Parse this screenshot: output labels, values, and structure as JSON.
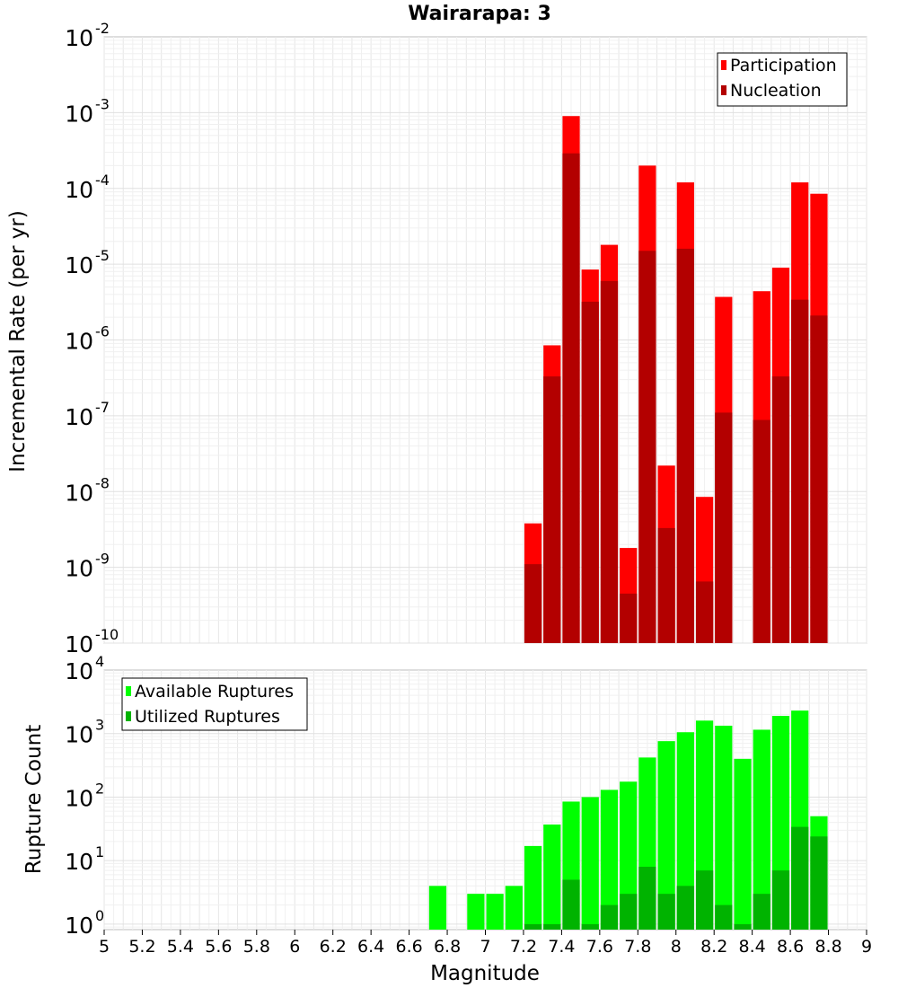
{
  "chart_data": [
    {
      "type": "bar",
      "title": "Wairarapa: 3",
      "xlabel": "",
      "ylabel": "Incremental Rate (per yr)",
      "yscale": "log",
      "ylim": [
        1e-10,
        0.01
      ],
      "xlim": [
        5,
        9
      ],
      "bar_width": 0.1,
      "grid": true,
      "legend_position": "top-right",
      "ytick_exponents": [
        "-10",
        "-9",
        "-8",
        "-7",
        "-6",
        "-5",
        "-4",
        "-3",
        "-2"
      ],
      "series": [
        {
          "name": "Participation",
          "color": "#ff0000",
          "x": [
            7.25,
            7.35,
            7.45,
            7.55,
            7.65,
            7.75,
            7.85,
            7.95,
            8.05,
            8.15,
            8.25,
            8.45,
            8.55,
            8.65,
            8.75
          ],
          "values": [
            3.8e-09,
            8.5e-07,
            0.0009,
            8.5e-06,
            1.8e-05,
            1.8e-09,
            0.0002,
            2.2e-08,
            0.00012,
            8.5e-09,
            3.7e-06,
            4.4e-06,
            9e-06,
            0.00012,
            8.5e-05
          ]
        },
        {
          "name": "Nucleation",
          "color": "#b30000",
          "x": [
            7.25,
            7.35,
            7.45,
            7.55,
            7.65,
            7.75,
            7.85,
            7.95,
            8.05,
            8.15,
            8.25,
            8.45,
            8.55,
            8.65,
            8.75
          ],
          "values": [
            1.1e-09,
            3.3e-07,
            0.00029,
            3.2e-06,
            6e-06,
            4.5e-10,
            1.5e-05,
            3.3e-09,
            1.6e-05,
            6.5e-10,
            1.1e-07,
            8.8e-08,
            3.3e-07,
            3.4e-06,
            2.1e-06
          ]
        }
      ]
    },
    {
      "type": "bar",
      "title": "",
      "xlabel": "Magnitude",
      "ylabel": "Rupture Count",
      "yscale": "log",
      "ylim": [
        0.82,
        10000.0
      ],
      "xlim": [
        5,
        9
      ],
      "bar_width": 0.1,
      "grid": true,
      "legend_position": "top-left",
      "ytick_exponents": [
        "0",
        "1",
        "2",
        "3",
        "4"
      ],
      "xtick_labels": [
        "5",
        "5.2",
        "5.4",
        "5.6",
        "5.8",
        "6",
        "6.2",
        "6.4",
        "6.6",
        "6.8",
        "7",
        "7.2",
        "7.4",
        "7.6",
        "7.8",
        "8",
        "8.2",
        "8.4",
        "8.6",
        "8.8",
        "9"
      ],
      "series": [
        {
          "name": "Available Ruptures",
          "color": "#00ff00",
          "x": [
            6.75,
            6.95,
            7.05,
            7.15,
            7.25,
            7.35,
            7.45,
            7.55,
            7.65,
            7.75,
            7.85,
            7.95,
            8.05,
            8.15,
            8.25,
            8.35,
            8.45,
            8.55,
            8.65,
            8.75
          ],
          "values": [
            4,
            3,
            3,
            4,
            17,
            37,
            85,
            100,
            130,
            175,
            420,
            760,
            1050,
            1600,
            1330,
            400,
            1150,
            1900,
            2300,
            50
          ]
        },
        {
          "name": "Utilized Ruptures",
          "color": "#00b300",
          "x": [
            7.25,
            7.35,
            7.45,
            7.55,
            7.65,
            7.75,
            7.85,
            7.95,
            8.05,
            8.15,
            8.25,
            8.35,
            8.45,
            8.55,
            8.65,
            8.75
          ],
          "values": [
            1,
            1,
            5,
            1,
            2,
            3,
            8,
            3,
            4,
            7,
            2,
            1,
            3,
            7,
            34,
            24
          ]
        }
      ]
    }
  ]
}
